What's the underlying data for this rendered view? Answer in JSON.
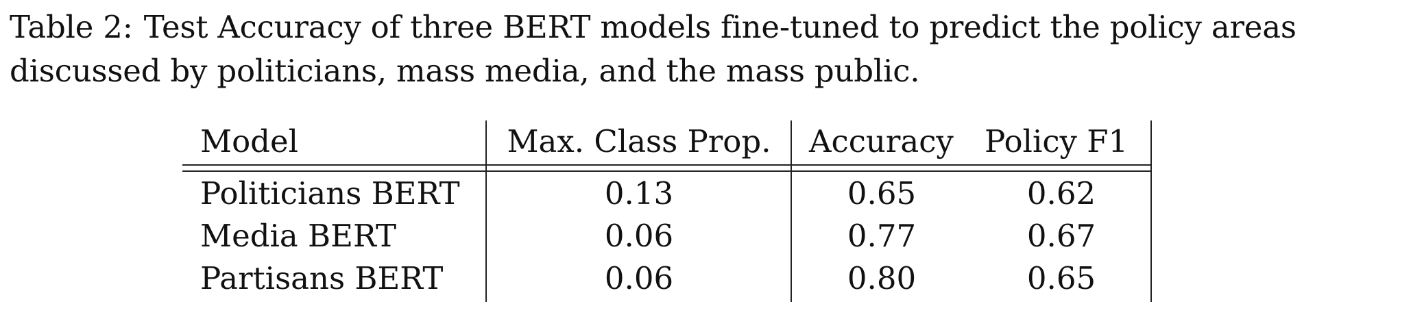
{
  "caption": {
    "label": "Table 2:",
    "text": "Test Accuracy of three BERT models fine-tuned to predict the policy areas discussed by politicians, mass media, and the mass public."
  },
  "table": {
    "headers": [
      "Model",
      "Max. Class Prop.",
      "Accuracy",
      "Policy F1"
    ],
    "rows": [
      [
        "Politicians BERT",
        "0.13",
        "0.65",
        "0.62"
      ],
      [
        "Media BERT",
        "0.06",
        "0.77",
        "0.67"
      ],
      [
        "Partisans BERT",
        "0.06",
        "0.80",
        "0.65"
      ]
    ]
  }
}
